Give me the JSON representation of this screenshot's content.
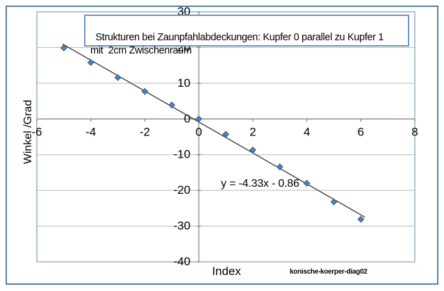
{
  "chart_data": {
    "type": "scatter",
    "title": "Strukturen bei Zaunpfahlabdeckungen: Kupfer 0 parallel zu Kupfer 1\nmit  2cm Zwischenraum",
    "xlabel": "Index",
    "ylabel": "Winkel /Grad",
    "footnote": "konische-koerper-diag02",
    "x": [
      -5,
      -4,
      -3,
      -2,
      -1,
      0,
      1,
      2,
      3,
      4,
      5,
      6
    ],
    "y": [
      19.9,
      15.8,
      11.6,
      7.7,
      3.9,
      0,
      -4.3,
      -8.7,
      -13.4,
      -18.0,
      -23.2,
      -28.1
    ],
    "trendline": {
      "label": "y = -4.33x - 0.86",
      "slope": -4.33,
      "intercept": -0.86,
      "x_start": -5.05,
      "x_end": 6.15
    },
    "xlim": [
      -6,
      8
    ],
    "ylim": [
      -40,
      30
    ],
    "x_ticks": [
      -6,
      -4,
      -2,
      0,
      2,
      4,
      6,
      8
    ],
    "y_ticks": [
      30,
      20,
      10,
      0,
      -10,
      -20,
      -30,
      -40
    ],
    "grid": "horizontal-only",
    "legend": "none",
    "colors": {
      "marker_fill": "#4f81bd",
      "marker_edge": "#38618f",
      "trendline": "#333333",
      "gridline": "#b8b8b8",
      "axis_line": "#808080",
      "plot_border": "#7f9db9",
      "frame_border": "#53809e",
      "title_box_border": "#6f94b8",
      "text": "#000000"
    }
  }
}
